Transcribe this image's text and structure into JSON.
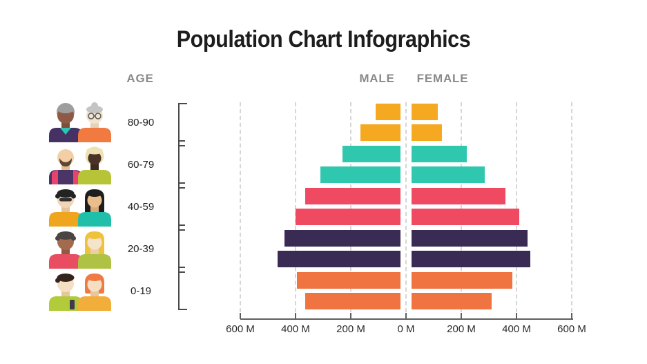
{
  "title": "Population Chart Infographics",
  "labels": {
    "age": "AGE",
    "male": "MALE",
    "female": "FEMALE"
  },
  "colors": {
    "yellow": "#F5A920",
    "teal": "#2FC7AE",
    "pink": "#F04A63",
    "purple": "#3A2B55",
    "orange": "#EF7442",
    "axis": "#5F5F5F",
    "grid": "#D6D6D6",
    "header_gray": "#8A8A8A",
    "title_color": "#1D1D1D"
  },
  "people": [
    {
      "icon": "couple-80-90-icon"
    },
    {
      "icon": "couple-60-79-icon"
    },
    {
      "icon": "couple-40-59-icon"
    },
    {
      "icon": "couple-20-39-icon"
    },
    {
      "icon": "couple-0-19-icon"
    }
  ],
  "chart_data": {
    "type": "bar",
    "subtype": "population-pyramid",
    "title": "Population Chart Infographics",
    "unit": "millions",
    "grid": true,
    "axis_ticks": [
      "600 M",
      "400 M",
      "200 M",
      "0 M",
      "200 M",
      "400 M",
      "600 M"
    ],
    "axis_max_each_side": 600,
    "bars_per_group": 2,
    "age_groups": [
      {
        "label": "80-90",
        "color": "#F5A920",
        "male": [
          90,
          145
        ],
        "female": [
          95,
          110
        ]
      },
      {
        "label": "60-79",
        "color": "#2FC7AE",
        "male": [
          210,
          290
        ],
        "female": [
          200,
          265
        ]
      },
      {
        "label": "40-59",
        "color": "#F04A63",
        "male": [
          345,
          380
        ],
        "female": [
          340,
          390
        ]
      },
      {
        "label": "20-39",
        "color": "#3A2B55",
        "male": [
          420,
          445
        ],
        "female": [
          420,
          430
        ]
      },
      {
        "label": "0-19",
        "color": "#EF7442",
        "male": [
          375,
          345
        ],
        "female": [
          365,
          290
        ]
      }
    ]
  }
}
